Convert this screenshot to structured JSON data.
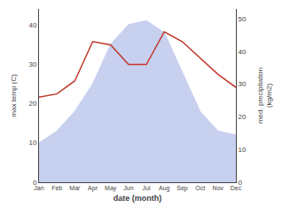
{
  "chart_data": {
    "type": "line",
    "categories": [
      "Jan",
      "Feb",
      "Mar",
      "Apr",
      "May",
      "Jun",
      "Jul",
      "Aug",
      "Sep",
      "Oct",
      "Nov",
      "Dec"
    ],
    "xlabel": "date (month)",
    "ylabel": "max temp (C)",
    "y2label": "med. precipitation\n(kg/m2)",
    "series": [
      {
        "type": "area",
        "color": "#c8d0f0",
        "values": [
          10,
          13,
          18,
          25,
          35,
          40,
          41,
          38,
          28,
          18,
          13,
          12
        ]
      },
      {
        "type": "line",
        "color": "#c0392b",
        "axis": "y2",
        "values": [
          26,
          27,
          31,
          43,
          42,
          36,
          36,
          46,
          43,
          38,
          33,
          29
        ]
      }
    ],
    "ylim": [
      0,
      44
    ],
    "yticks": [
      0,
      10,
      20,
      30,
      40
    ],
    "y2lim": [
      0,
      53
    ],
    "y2ticks": [
      0,
      10,
      20,
      30,
      40,
      50
    ],
    "grid": false
  }
}
